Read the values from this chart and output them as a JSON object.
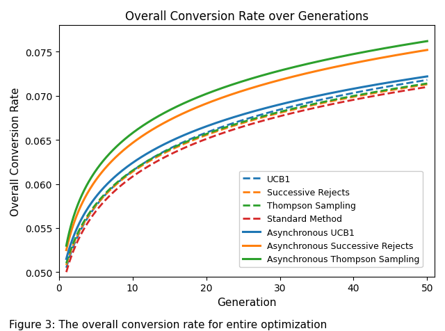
{
  "title": "Overall Conversion Rate over Generations",
  "xlabel": "Generation",
  "ylabel": "Overall Conversion Rate",
  "ylim": [
    0.0495,
    0.078
  ],
  "curves": {
    "UCB1": {
      "color": "#1f77b4",
      "linestyle": "dashed",
      "linewidth": 2.0,
      "a": 0.05,
      "b": 0.023,
      "c": 0.55
    },
    "Successive Rejects": {
      "color": "#ff7f0e",
      "linestyle": "dashed",
      "linewidth": 2.0,
      "a": 0.0502,
      "b": 0.023,
      "c": 0.56
    },
    "Thompson Sampling": {
      "color": "#2ca02c",
      "linestyle": "dashed",
      "linewidth": 2.0,
      "a": 0.0504,
      "b": 0.0232,
      "c": 0.57
    },
    "Standard Method": {
      "color": "#d62728",
      "linestyle": "dashed",
      "linewidth": 2.0,
      "a": 0.0498,
      "b": 0.022,
      "c": 0.54
    },
    "Asynchronous UCB1": {
      "color": "#1f77b4",
      "linestyle": "solid",
      "linewidth": 2.2,
      "a": 0.051,
      "b": 0.025,
      "c": 0.6
    },
    "Asynchronous Successive Rejects": {
      "color": "#ff7f0e",
      "linestyle": "solid",
      "linewidth": 2.2,
      "a": 0.0515,
      "b": 0.029,
      "c": 0.65
    },
    "Asynchronous Thompson Sampling": {
      "color": "#2ca02c",
      "linestyle": "solid",
      "linewidth": 2.2,
      "a": 0.052,
      "b": 0.033,
      "c": 0.72
    }
  },
  "legend_order": [
    "UCB1",
    "Successive Rejects",
    "Thompson Sampling",
    "Standard Method",
    "Asynchronous UCB1",
    "Asynchronous Successive Rejects",
    "Asynchronous Thompson Sampling"
  ],
  "yticks": [
    0.05,
    0.055,
    0.06,
    0.065,
    0.07,
    0.075
  ],
  "xticks": [
    0,
    10,
    20,
    30,
    40,
    50
  ],
  "figure_caption": "Figure 3: The overall conversion rate for entire optimization"
}
